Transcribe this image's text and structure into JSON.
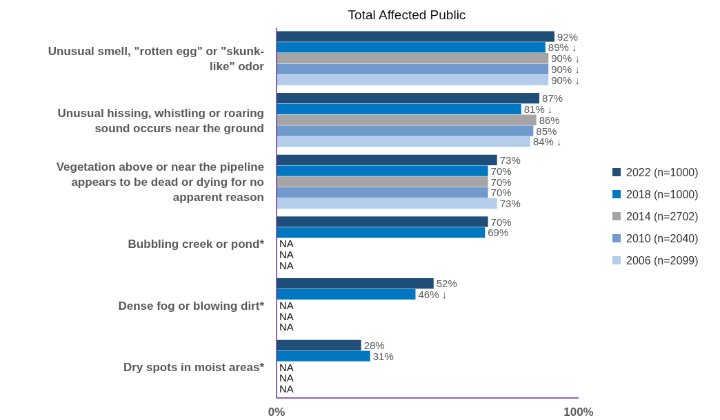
{
  "chart_data": {
    "type": "bar",
    "orientation": "horizontal",
    "title": "Total Affected Public",
    "categories": [
      "Unusual smell, \"rotten egg\" or \"skunk-like\" odor",
      "Unusual hissing, whistling or roaring sound occurs near the ground",
      "Vegetation above or near the pipeline appears to be dead or dying for no apparent reason",
      "Bubbling creek or pond*",
      "Dense fog or blowing dirt*",
      "Dry spots in moist areas*"
    ],
    "series": [
      {
        "name": "2022 (n=1000)",
        "color": "#1f4e79",
        "values": [
          92,
          87,
          73,
          70,
          52,
          28
        ],
        "value_labels": [
          "92%",
          "87%",
          "73%",
          "70%",
          "52%",
          "28%"
        ]
      },
      {
        "name": "2018 (n=1000)",
        "color": "#0077c0",
        "values": [
          89,
          81,
          70,
          69,
          46,
          31
        ],
        "value_labels": [
          "89% ↓",
          "81% ↓",
          "70%",
          "69%",
          "46% ↓",
          "31%"
        ]
      },
      {
        "name": "2014 (n=2702)",
        "color": "#a5a5a5",
        "values": [
          90,
          86,
          70,
          null,
          null,
          null
        ],
        "value_labels": [
          "90% ↓",
          "86%",
          "70%",
          "NA",
          "NA",
          "NA"
        ]
      },
      {
        "name": "2010 (n=2040)",
        "color": "#7099cc",
        "values": [
          90,
          85,
          70,
          null,
          null,
          null
        ],
        "value_labels": [
          "90% ↓",
          "85%",
          "70%",
          "NA",
          "NA",
          "NA"
        ]
      },
      {
        "name": "2006 (n=2099)",
        "color": "#b4cdeb",
        "values": [
          90,
          84,
          73,
          null,
          null,
          null
        ],
        "value_labels": [
          "90% ↓",
          "84% ↓",
          "73%",
          "NA",
          "NA",
          "NA"
        ]
      }
    ],
    "xlim": [
      0,
      100
    ],
    "xticks": [
      {
        "value": 0,
        "label": "0%"
      },
      {
        "value": 100,
        "label": "100%"
      }
    ],
    "grid": false,
    "legend": "right"
  }
}
